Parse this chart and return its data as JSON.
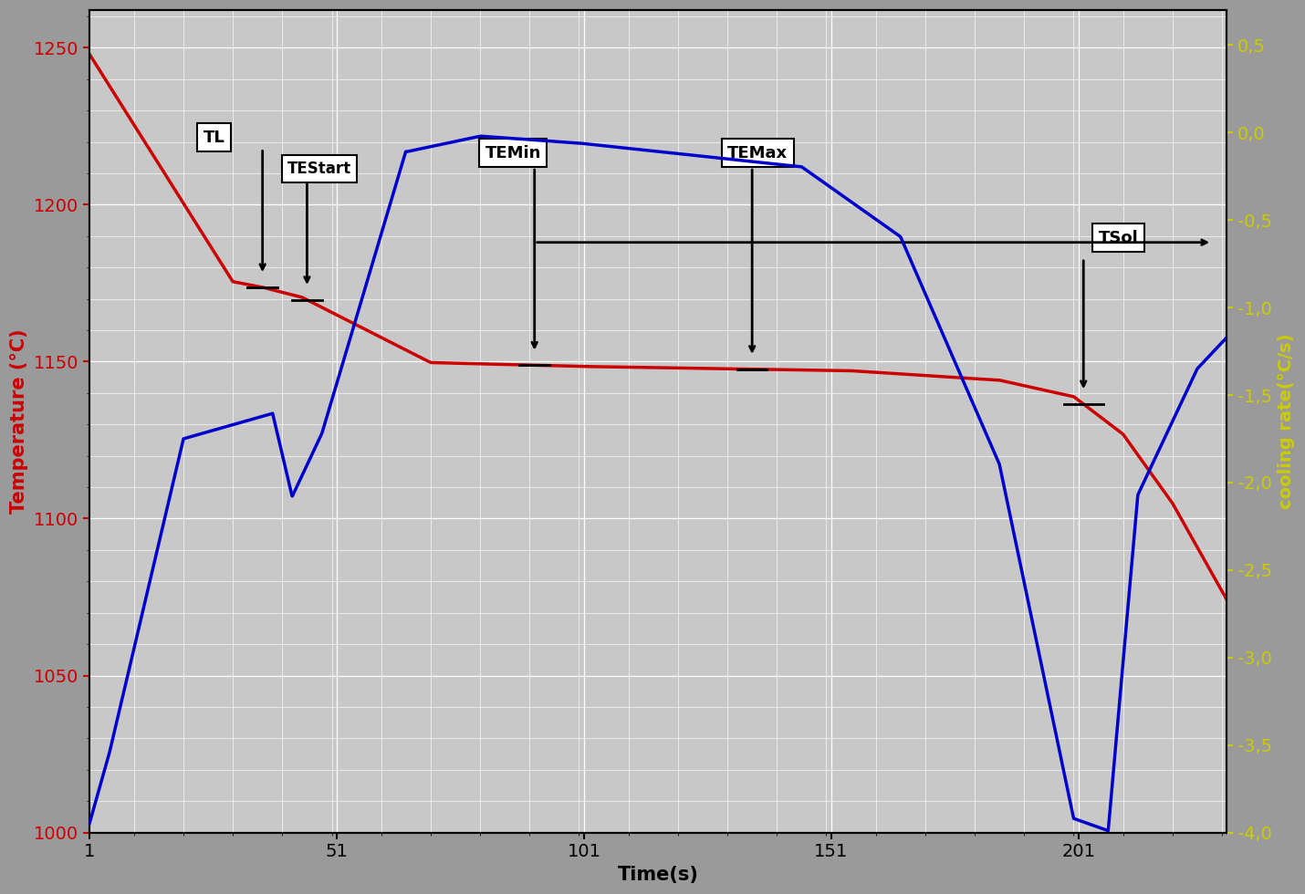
{
  "title": "",
  "xlabel": "Time(s)",
  "ylabel_left": "Temperature (°C)",
  "ylabel_right": "cooling rate(°C/s)",
  "xlim": [
    1,
    231
  ],
  "ylim_left": [
    1000,
    1262
  ],
  "ylim_right": [
    -4.0,
    0.7
  ],
  "xticks": [
    1,
    51,
    101,
    151,
    201
  ],
  "yticks_left": [
    1000,
    1050,
    1100,
    1150,
    1200,
    1250
  ],
  "yticks_right": [
    -4.0,
    -3.5,
    -3.0,
    -2.5,
    -2.0,
    -1.5,
    -1.0,
    -0.5,
    0.0,
    0.5
  ],
  "bg_outer": "#9a9a9a",
  "bg_plot": "#c8c8c8",
  "grid_color": "#ffffff",
  "red_color": "#cc0000",
  "blue_color": "#0000cc",
  "left_label_color": "#cc0000",
  "right_label_color": "#cccc00",
  "xlabel_color": "#000000"
}
